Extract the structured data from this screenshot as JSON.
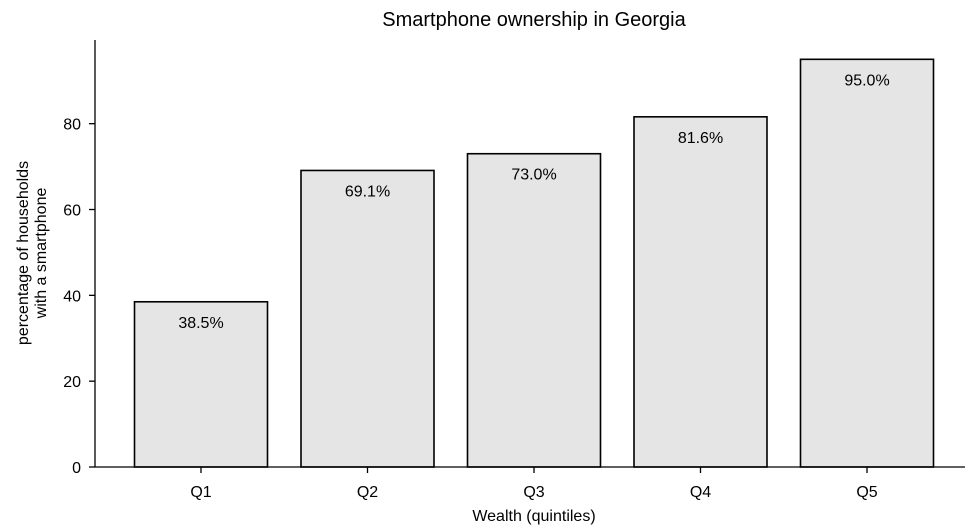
{
  "chart_data": {
    "type": "bar",
    "title": "Smartphone ownership in Georgia",
    "xlabel": "Wealth (quintiles)",
    "ylabel_lines": [
      "percentage of households",
      "with a smartphone"
    ],
    "categories": [
      "Q1",
      "Q2",
      "Q3",
      "Q4",
      "Q5"
    ],
    "values": [
      38.5,
      69.1,
      73.0,
      81.6,
      95.0
    ],
    "data_labels": [
      "38.5%",
      "69.1%",
      "73.0%",
      "81.6%",
      "95.0%"
    ],
    "ylim": [
      0,
      99.5
    ],
    "yticks": [
      0,
      20,
      40,
      60,
      80
    ],
    "grid": false,
    "bar_color": "#e5e5e5",
    "edge_color": "#000000"
  }
}
